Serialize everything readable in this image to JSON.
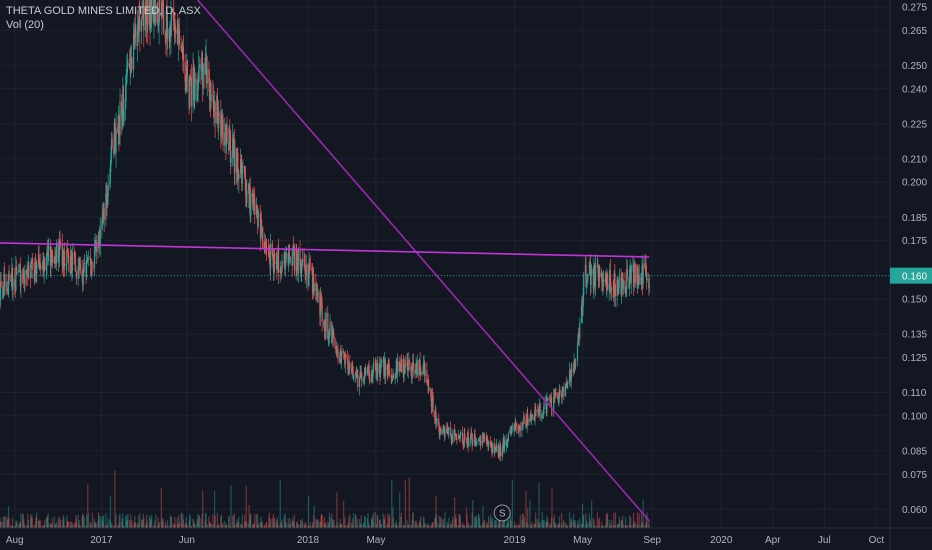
{
  "legend": {
    "symbol_line": "THETA GOLD MINES LIMITED, D, ASX",
    "volume_line": "Vol (20)"
  },
  "colors": {
    "background": "#131722",
    "grid": "#1e2230",
    "up": "#26a69a",
    "down": "#ef5350",
    "trendline_main": "#9c27b0",
    "trendline_resistance": "#c234d9",
    "price_badge": "#26a69a",
    "axis_text": "#b2b5be"
  },
  "chart_data": {
    "type": "candlestick",
    "y_ticks": [
      "0.275",
      "0.265",
      "0.250",
      "0.240",
      "0.225",
      "0.210",
      "0.200",
      "0.185",
      "0.175",
      "0.160",
      "0.150",
      "0.135",
      "0.125",
      "0.110",
      "0.100",
      "0.085",
      "0.075",
      "0.060"
    ],
    "ylim": [
      0.052,
      0.278
    ],
    "x_ticks": [
      {
        "label": "Aug",
        "date": "2016-08-01"
      },
      {
        "label": "2017",
        "date": "2017-01-01"
      },
      {
        "label": "Jun",
        "date": "2017-06-01"
      },
      {
        "label": "2018",
        "date": "2018-01-01"
      },
      {
        "label": "May",
        "date": "2018-05-01"
      },
      {
        "label": "2019",
        "date": "2019-01-01"
      },
      {
        "label": "May",
        "date": "2019-05-01"
      },
      {
        "label": "Sep",
        "date": "2019-09-01"
      },
      {
        "label": "2020",
        "date": "2020-01-01"
      },
      {
        "label": "Apr",
        "date": "2020-04-01"
      },
      {
        "label": "Jul",
        "date": "2020-07-01"
      },
      {
        "label": "Oct",
        "date": "2020-10-01"
      }
    ],
    "xlim": [
      "2016-07-06",
      "2020-10-25"
    ],
    "last_price": "0.160",
    "price_anchors": [
      {
        "date": "2016-07-06",
        "price": 0.155
      },
      {
        "date": "2016-08-10",
        "price": 0.16
      },
      {
        "date": "2016-09-20",
        "price": 0.165
      },
      {
        "date": "2016-10-20",
        "price": 0.17
      },
      {
        "date": "2016-12-01",
        "price": 0.16
      },
      {
        "date": "2016-12-31",
        "price": 0.175
      },
      {
        "date": "2017-01-20",
        "price": 0.215
      },
      {
        "date": "2017-02-15",
        "price": 0.24
      },
      {
        "date": "2017-03-05",
        "price": 0.27
      },
      {
        "date": "2017-04-01",
        "price": 0.275
      },
      {
        "date": "2017-05-10",
        "price": 0.265
      },
      {
        "date": "2017-06-05",
        "price": 0.24
      },
      {
        "date": "2017-07-05",
        "price": 0.245
      },
      {
        "date": "2017-08-01",
        "price": 0.225
      },
      {
        "date": "2017-09-01",
        "price": 0.205
      },
      {
        "date": "2017-10-01",
        "price": 0.185
      },
      {
        "date": "2017-11-01",
        "price": 0.165
      },
      {
        "date": "2017-12-01",
        "price": 0.17
      },
      {
        "date": "2018-01-05",
        "price": 0.16
      },
      {
        "date": "2018-02-01",
        "price": 0.14
      },
      {
        "date": "2018-03-01",
        "price": 0.125
      },
      {
        "date": "2018-04-01",
        "price": 0.115
      },
      {
        "date": "2018-05-01",
        "price": 0.12
      },
      {
        "date": "2018-06-15",
        "price": 0.12
      },
      {
        "date": "2018-07-25",
        "price": 0.12
      },
      {
        "date": "2018-08-20",
        "price": 0.095
      },
      {
        "date": "2018-10-01",
        "price": 0.09
      },
      {
        "date": "2018-11-01",
        "price": 0.09
      },
      {
        "date": "2018-12-05",
        "price": 0.085
      },
      {
        "date": "2019-01-01",
        "price": 0.095
      },
      {
        "date": "2019-02-01",
        "price": 0.1
      },
      {
        "date": "2019-03-01",
        "price": 0.105
      },
      {
        "date": "2019-04-01",
        "price": 0.11
      },
      {
        "date": "2019-04-20",
        "price": 0.125
      },
      {
        "date": "2019-05-05",
        "price": 0.16
      },
      {
        "date": "2019-06-01",
        "price": 0.16
      },
      {
        "date": "2019-07-01",
        "price": 0.155
      },
      {
        "date": "2019-08-01",
        "price": 0.16
      },
      {
        "date": "2019-08-27",
        "price": 0.16
      }
    ],
    "volume_pane": {
      "show": true
    },
    "trendlines": [
      {
        "name": "downtrend",
        "start": {
          "date": "2017-06-20",
          "price": 0.278
        },
        "end": {
          "date": "2019-08-27",
          "price": 0.055
        }
      },
      {
        "name": "resistance",
        "start": {
          "date": "2016-07-06",
          "price": 0.174
        },
        "end": {
          "date": "2019-08-27",
          "price": 0.168
        }
      }
    ],
    "event_marker": {
      "label": "S",
      "date": "2018-12-10"
    },
    "grid": true,
    "price_axis": "right"
  }
}
